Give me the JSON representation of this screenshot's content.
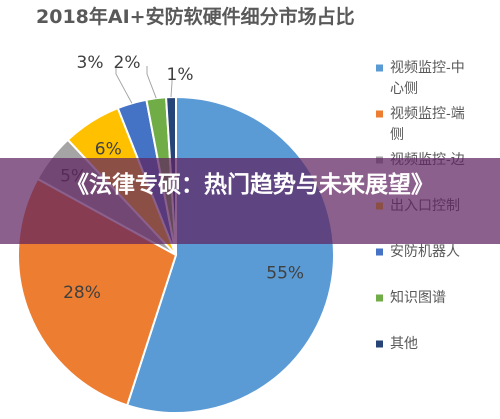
{
  "banner": {
    "headline": "《法律专硕：热门趋势与未来展望》"
  },
  "chart_data": {
    "type": "pie",
    "title": "2018年AI+安防软硬件细分市场占比",
    "legend_position": "right",
    "slices": [
      {
        "label": "视频监控-中心侧",
        "value": 55,
        "display": "55%",
        "color": "#5B9BD5"
      },
      {
        "label": "视频监控-端侧",
        "value": 28,
        "display": "28%",
        "color": "#ED7D31"
      },
      {
        "label": "视频监控-边",
        "value": 5,
        "display": "5%",
        "color": "#A5A5A5"
      },
      {
        "label": "出入口控制",
        "value": 6,
        "display": "6%",
        "color": "#FFC000"
      },
      {
        "label": "安防机器人",
        "value": 3,
        "display": "3%",
        "color": "#4472C4"
      },
      {
        "label": "知识图谱",
        "value": 2,
        "display": "2%",
        "color": "#70AD47"
      },
      {
        "label": "其他",
        "value": 1,
        "display": "1%",
        "color": "#264478"
      }
    ]
  }
}
